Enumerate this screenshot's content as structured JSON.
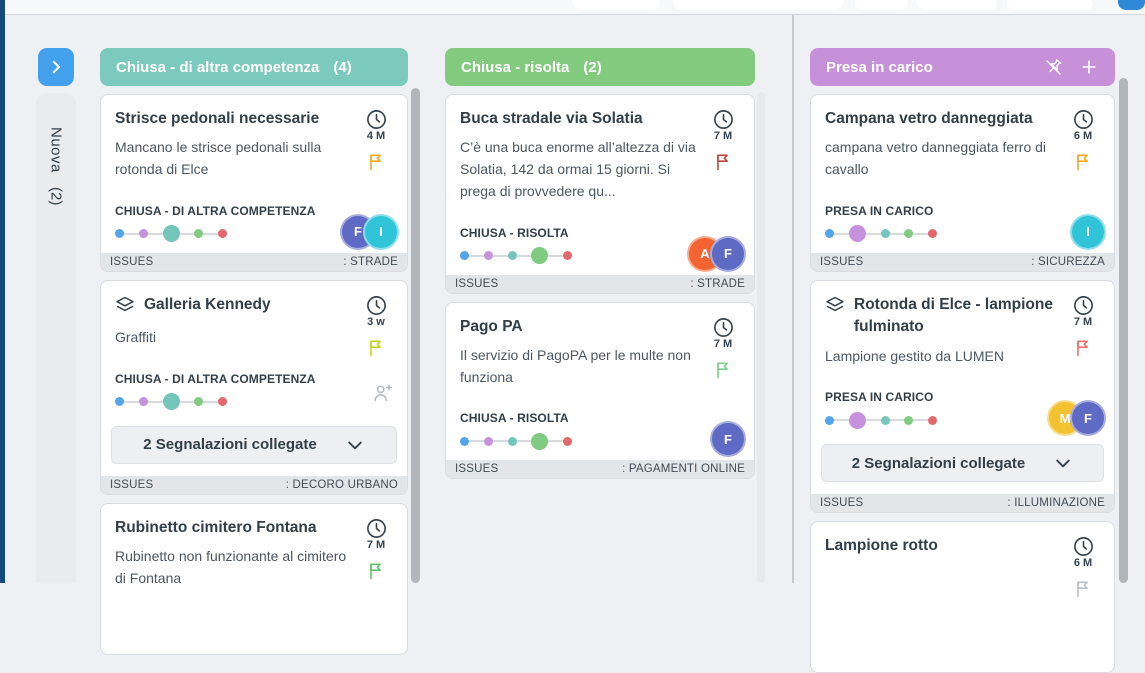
{
  "topbar": {
    "accent_button_color": "#2f88d8"
  },
  "sidebar": {
    "collapsed_column": {
      "label": "Nuova",
      "count": "(2)"
    }
  },
  "board": {
    "dot_colors": [
      "#54a4e8",
      "#c792dd",
      "#74c5ba",
      "#7ecb81",
      "#e2696b"
    ],
    "columns": [
      {
        "title": "Chiusa - di altra competenza",
        "count": "(4)",
        "header_color": "#7cc9be",
        "header_icons": [],
        "cards": [
          {
            "title": "Strisce pedonali necessarie",
            "layers_icon": false,
            "time": "4 M",
            "flag_color": "#f5a81c",
            "description": "Mancano le strisce pedonali sulla rotonda di Elce",
            "status": "CHIUSA - DI ALTRA COMPETENZA",
            "active_dot": 2,
            "avatars": [
              {
                "initial": "F",
                "color": "#5f6ac4"
              },
              {
                "initial": "I",
                "color": "#2fc4d8"
              }
            ],
            "add_person_icon": false,
            "linked_label": null,
            "footer_left": "ISSUES",
            "footer_right": ": STRADE"
          },
          {
            "title": "Galleria Kennedy",
            "layers_icon": true,
            "time": "3 w",
            "flag_color": "#c3d222",
            "description": "Graffiti",
            "status": "CHIUSA - DI ALTRA COMPETENZA",
            "active_dot": 2,
            "avatars": [],
            "add_person_icon": true,
            "linked_label": "2 Segnalazioni collegate",
            "footer_left": "ISSUES",
            "footer_right": ": DECORO URBANO"
          },
          {
            "title": "Rubinetto cimitero Fontana",
            "layers_icon": false,
            "time": "7 M",
            "flag_color": "#67bf6b",
            "description": "Rubinetto non funzionante al cimitero di Fontana",
            "partial": true
          }
        ]
      },
      {
        "title": "Chiusa - risolta",
        "count": "(2)",
        "header_color": "#82ca7e",
        "header_icons": [],
        "cards": [
          {
            "title": "Buca stradale via Solatia",
            "layers_icon": false,
            "time": "7 M",
            "flag_color": "#bb4a3c",
            "description": "C’è una buca enorme all’altezza di via Solatia, 142 da ormai 15 giorni. Si prega di provvedere qu...",
            "status": "CHIUSA - RISOLTA",
            "active_dot": 3,
            "avatars": [
              {
                "initial": "A",
                "color": "#f46332"
              },
              {
                "initial": "F",
                "color": "#5f6ac4"
              }
            ],
            "add_person_icon": false,
            "linked_label": null,
            "footer_left": "ISSUES",
            "footer_right": ": STRADE"
          },
          {
            "title": "Pago PA",
            "layers_icon": false,
            "time": "7 M",
            "flag_color": "#7ccf8e",
            "description": "Il servizio di PagoPA per le multe non funziona",
            "status": "CHIUSA - RISOLTA",
            "active_dot": 3,
            "avatars": [
              {
                "initial": "F",
                "color": "#5f6ac4"
              }
            ],
            "add_person_icon": false,
            "linked_label": null,
            "footer_left": "ISSUES",
            "footer_right": ": PAGAMENTI ONLINE"
          }
        ]
      },
      {
        "title": "Presa in carico",
        "count": "",
        "header_color": "#c791d9",
        "header_icons": [
          "unpin-icon",
          "plus-icon"
        ],
        "cards": [
          {
            "title": "Campana vetro danneggiata",
            "layers_icon": false,
            "time": "6 M",
            "flag_color": "#f5a81c",
            "description": "campana vetro danneggiata ferro di cavallo",
            "status": "PRESA IN CARICO",
            "active_dot": 1,
            "avatars": [
              {
                "initial": "I",
                "color": "#2fc4d8"
              }
            ],
            "add_person_icon": false,
            "linked_label": null,
            "footer_left": "ISSUES",
            "footer_right": ": SICUREZZA"
          },
          {
            "title": "Rotonda di Elce - lampione fulminato",
            "layers_icon": true,
            "time": "7 M",
            "flag_color": "#f36c6c",
            "description": "Lampione gestito da LUMEN",
            "status": "PRESA IN CARICO",
            "active_dot": 1,
            "avatars": [
              {
                "initial": "M",
                "color": "#f2c230"
              },
              {
                "initial": "F",
                "color": "#5f6ac4"
              }
            ],
            "add_person_icon": false,
            "linked_label": "2 Segnalazioni collegate",
            "footer_left": "ISSUES",
            "footer_right": ": ILLUMINAZIONE"
          },
          {
            "title": "Lampione rotto",
            "layers_icon": false,
            "time": "6 M",
            "flag_color": "#b9c0c6",
            "partial": true
          }
        ]
      }
    ]
  }
}
